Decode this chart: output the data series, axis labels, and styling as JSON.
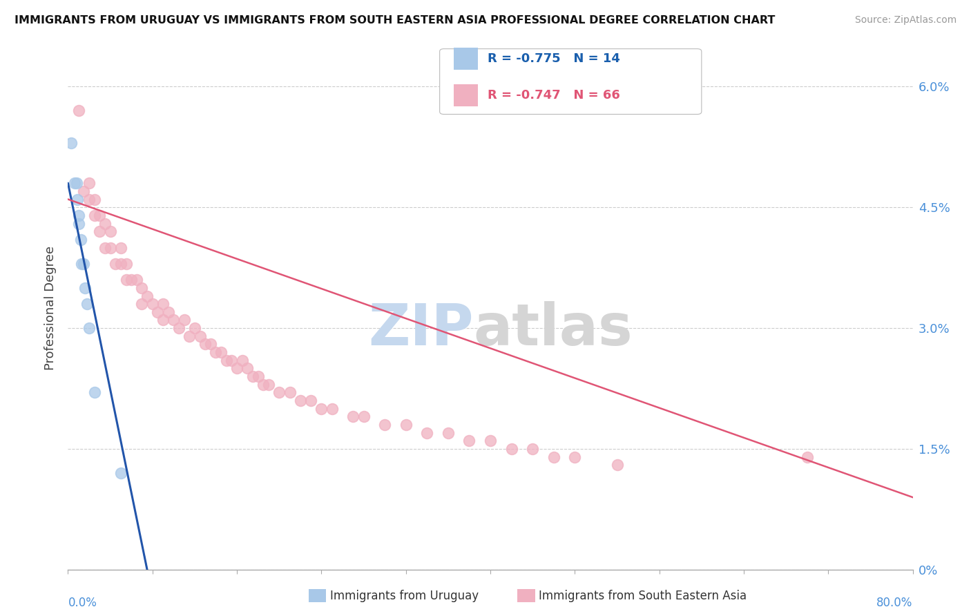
{
  "title": "IMMIGRANTS FROM URUGUAY VS IMMIGRANTS FROM SOUTH EASTERN ASIA PROFESSIONAL DEGREE CORRELATION CHART",
  "source": "Source: ZipAtlas.com",
  "ylabel": "Professional Degree",
  "ytick_labels": [
    "0%",
    "1.5%",
    "3.0%",
    "4.5%",
    "6.0%"
  ],
  "ytick_vals": [
    0.0,
    0.015,
    0.03,
    0.045,
    0.06
  ],
  "xmin": 0.0,
  "xmax": 0.8,
  "ymin": 0.0,
  "ymax": 0.065,
  "legend_1_label": "R = -0.775   N = 14",
  "legend_2_label": "R = -0.747   N = 66",
  "legend_label_bottom_1": "Immigrants from Uruguay",
  "legend_label_bottom_2": "Immigrants from South Eastern Asia",
  "color_uruguay": "#a8c8e8",
  "color_sea": "#f0b0c0",
  "color_line_uruguay": "#2255aa",
  "color_line_sea": "#e05575",
  "watermark_zip": "ZIP",
  "watermark_atlas": "atlas",
  "uruguay_x": [
    0.003,
    0.006,
    0.008,
    0.009,
    0.01,
    0.01,
    0.012,
    0.013,
    0.015,
    0.016,
    0.018,
    0.02,
    0.025,
    0.05
  ],
  "uruguay_y": [
    0.053,
    0.048,
    0.048,
    0.046,
    0.044,
    0.043,
    0.041,
    0.038,
    0.038,
    0.035,
    0.033,
    0.03,
    0.022,
    0.012
  ],
  "sea_x": [
    0.01,
    0.015,
    0.02,
    0.02,
    0.025,
    0.025,
    0.03,
    0.03,
    0.035,
    0.035,
    0.04,
    0.04,
    0.045,
    0.05,
    0.05,
    0.055,
    0.055,
    0.06,
    0.065,
    0.07,
    0.07,
    0.075,
    0.08,
    0.085,
    0.09,
    0.09,
    0.095,
    0.1,
    0.105,
    0.11,
    0.115,
    0.12,
    0.125,
    0.13,
    0.135,
    0.14,
    0.145,
    0.15,
    0.155,
    0.16,
    0.165,
    0.17,
    0.175,
    0.18,
    0.185,
    0.19,
    0.2,
    0.21,
    0.22,
    0.23,
    0.24,
    0.25,
    0.27,
    0.28,
    0.3,
    0.32,
    0.34,
    0.36,
    0.38,
    0.4,
    0.42,
    0.44,
    0.46,
    0.48,
    0.52,
    0.7
  ],
  "sea_y": [
    0.057,
    0.047,
    0.048,
    0.046,
    0.046,
    0.044,
    0.044,
    0.042,
    0.043,
    0.04,
    0.042,
    0.04,
    0.038,
    0.04,
    0.038,
    0.038,
    0.036,
    0.036,
    0.036,
    0.035,
    0.033,
    0.034,
    0.033,
    0.032,
    0.033,
    0.031,
    0.032,
    0.031,
    0.03,
    0.031,
    0.029,
    0.03,
    0.029,
    0.028,
    0.028,
    0.027,
    0.027,
    0.026,
    0.026,
    0.025,
    0.026,
    0.025,
    0.024,
    0.024,
    0.023,
    0.023,
    0.022,
    0.022,
    0.021,
    0.021,
    0.02,
    0.02,
    0.019,
    0.019,
    0.018,
    0.018,
    0.017,
    0.017,
    0.016,
    0.016,
    0.015,
    0.015,
    0.014,
    0.014,
    0.013,
    0.014
  ]
}
